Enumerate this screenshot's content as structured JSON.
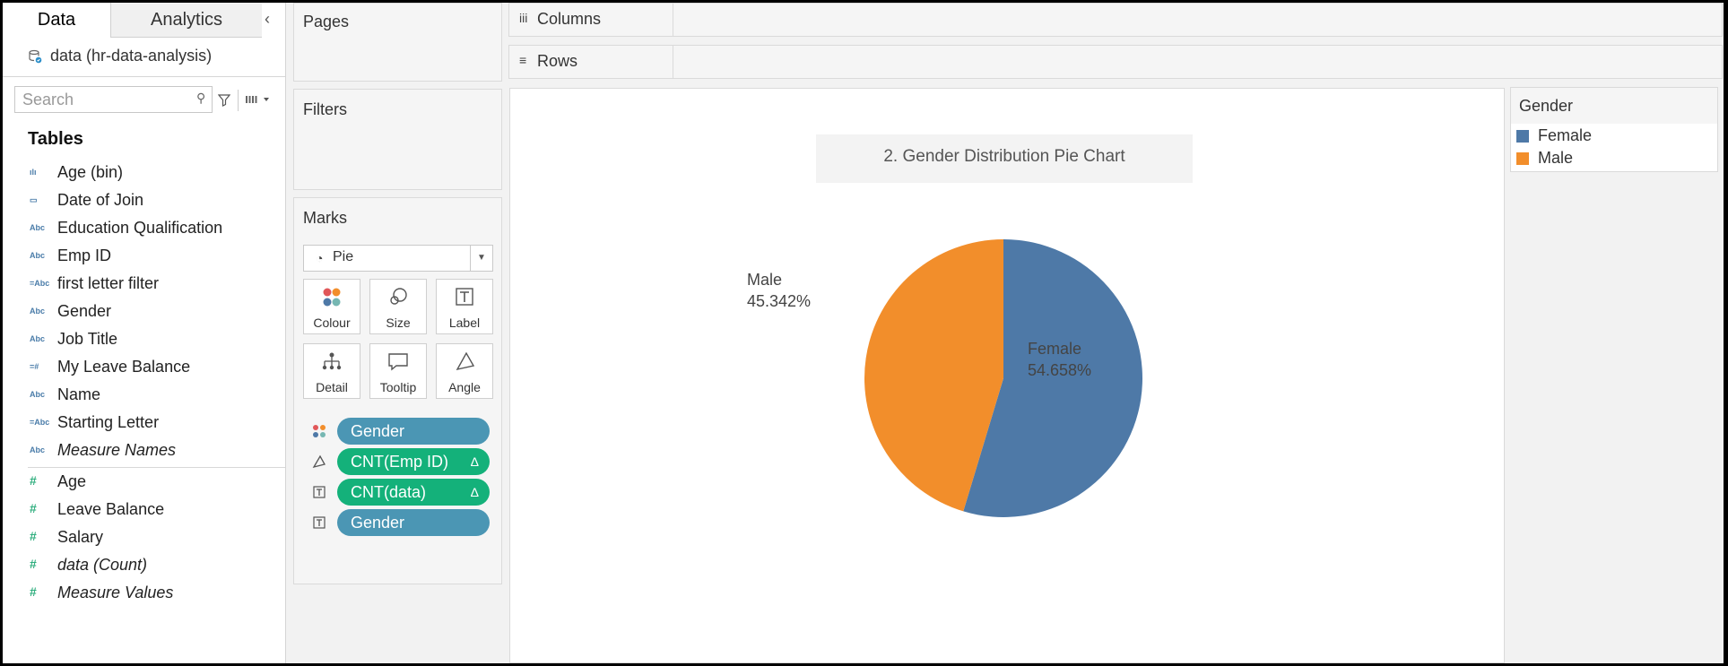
{
  "tabs": {
    "data": "Data",
    "analytics": "Analytics"
  },
  "collapse_glyph": "‹",
  "datasource": {
    "label": "data (hr-data-analysis)"
  },
  "search": {
    "placeholder": "Search"
  },
  "tables_title": "Tables",
  "dimensions": [
    {
      "icon": "ılı",
      "label": "Age (bin)",
      "italic": false,
      "icon_name": "bin-icon"
    },
    {
      "icon": "▭",
      "label": "Date of Join",
      "italic": false,
      "icon_name": "date-icon"
    },
    {
      "icon": "Abc",
      "label": "Education Qualification",
      "italic": false,
      "icon_name": "string-icon"
    },
    {
      "icon": "Abc",
      "label": "Emp ID",
      "italic": false,
      "icon_name": "string-icon"
    },
    {
      "icon": "=Abc",
      "label": "first letter filter",
      "italic": false,
      "icon_name": "calculated-string-icon"
    },
    {
      "icon": "Abc",
      "label": "Gender",
      "italic": false,
      "icon_name": "string-icon"
    },
    {
      "icon": "Abc",
      "label": "Job Title",
      "italic": false,
      "icon_name": "string-icon"
    },
    {
      "icon": "=#",
      "label": "My Leave Balance",
      "italic": false,
      "icon_name": "calculated-number-icon"
    },
    {
      "icon": "Abc",
      "label": "Name",
      "italic": false,
      "icon_name": "string-icon"
    },
    {
      "icon": "=Abc",
      "label": "Starting Letter",
      "italic": false,
      "icon_name": "calculated-string-icon"
    },
    {
      "icon": "Abc",
      "label": "Measure Names",
      "italic": true,
      "icon_name": "string-icon"
    }
  ],
  "measures": [
    {
      "icon": "#",
      "label": "Age",
      "italic": false
    },
    {
      "icon": "#",
      "label": "Leave Balance",
      "italic": false
    },
    {
      "icon": "#",
      "label": "Salary",
      "italic": false
    },
    {
      "icon": "#",
      "label": "data (Count)",
      "italic": true
    },
    {
      "icon": "#",
      "label": "Measure Values",
      "italic": true
    }
  ],
  "pages": {
    "title": "Pages"
  },
  "filters": {
    "title": "Filters"
  },
  "marks": {
    "title": "Marks",
    "type": "Pie",
    "buttons": {
      "colour": "Colour",
      "size": "Size",
      "label": "Label",
      "detail": "Detail",
      "tooltip": "Tooltip",
      "angle": "Angle"
    },
    "pills": [
      {
        "label": "Gender",
        "color": "blue",
        "delta": "",
        "icon": "colour"
      },
      {
        "label": "CNT(Emp ID)",
        "color": "green",
        "delta": "Δ",
        "icon": "angle"
      },
      {
        "label": "CNT(data)",
        "color": "green",
        "delta": "Δ",
        "icon": "label"
      },
      {
        "label": "Gender",
        "color": "blue",
        "delta": "",
        "icon": "label"
      }
    ]
  },
  "columns": {
    "label": "Columns",
    "icon": "iii"
  },
  "rows": {
    "label": "Rows",
    "icon": "≡"
  },
  "colors": {
    "female": "#4e79a7",
    "male": "#f28e2b",
    "pill_blue": "#4b96b4",
    "pill_green": "#14b17a"
  },
  "chart_data": {
    "type": "pie",
    "title": "2. Gender Distribution Pie Chart",
    "slices": [
      {
        "name": "Female",
        "value": 54.658,
        "label": "54.658%",
        "color": "#4e79a7"
      },
      {
        "name": "Male",
        "value": 45.342,
        "label": "45.342%",
        "color": "#f28e2b"
      }
    ]
  },
  "legend": {
    "title": "Gender",
    "items": [
      {
        "label": "Female",
        "color": "#4e79a7"
      },
      {
        "label": "Male",
        "color": "#f28e2b"
      }
    ]
  }
}
